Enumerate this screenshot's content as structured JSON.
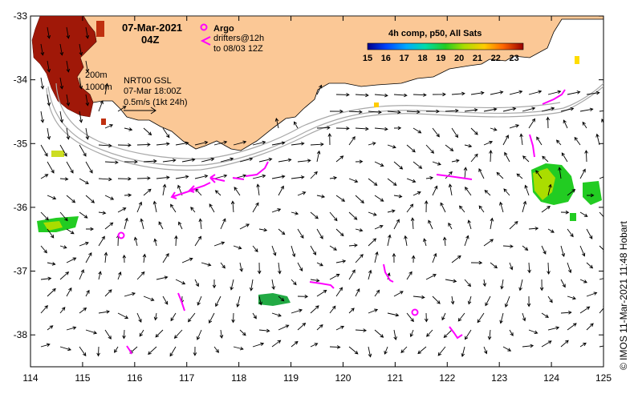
{
  "header": {
    "date": "07-Mar-2021",
    "time": "04Z",
    "argo_label": "Argo",
    "drifters_line1": "drifters@12h",
    "drifters_line2": "to 08/03 12Z",
    "composite_title": "4h comp, p50, All Sats"
  },
  "annotations": {
    "isobath_200": "200m",
    "isobath_1000": "1000m",
    "model": "NRT00 GSL",
    "model_time": "07-Mar 18:00Z",
    "vector_scale": "0.5m/s (1kt 24h)"
  },
  "credit": "© IMOS 11-Mar-2021 11:48 Hobart",
  "colorbar": {
    "ticks": [
      "15",
      "16",
      "17",
      "18",
      "19",
      "20",
      "21",
      "22",
      "23"
    ],
    "min": 15,
    "max": 23.5
  },
  "axes": {
    "x_ticks": [
      "114",
      "115",
      "116",
      "117",
      "118",
      "119",
      "120",
      "121",
      "122",
      "123",
      "124",
      "125"
    ],
    "y_ticks": [
      "-33",
      "-34",
      "-35",
      "-36",
      "-37",
      "-38"
    ],
    "lon_range": [
      114,
      125
    ],
    "lat_range": [
      -38.5,
      -33
    ]
  },
  "colors": {
    "land": "#fbc896",
    "argo": "#ff00ff",
    "drifter": "#ff00ff",
    "warm_sst": "#a01808",
    "green_sst": "#22cc22"
  }
}
